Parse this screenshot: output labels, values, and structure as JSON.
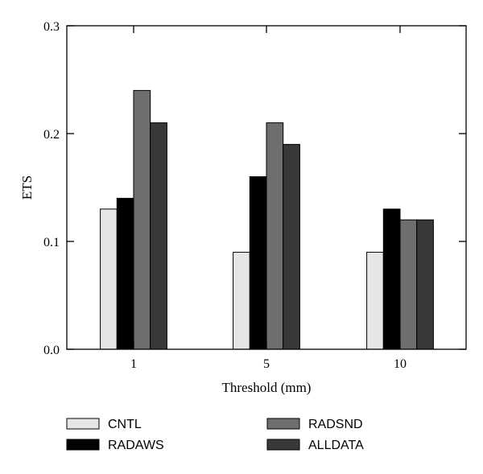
{
  "chart_data": {
    "type": "bar",
    "title": "",
    "xlabel": "Threshold (mm)",
    "ylabel": "ETS",
    "categories": [
      "1",
      "5",
      "10"
    ],
    "ylim": [
      0,
      0.3
    ],
    "yticks": [
      "0.0",
      "0.1",
      "0.2",
      "0.3"
    ],
    "grid": false,
    "legend_position": "bottom",
    "series": [
      {
        "name": "CNTL",
        "color": "#e6e6e6",
        "values": [
          0.13,
          0.09,
          0.09
        ]
      },
      {
        "name": "RADAWS",
        "color": "#000000",
        "values": [
          0.14,
          0.16,
          0.13
        ]
      },
      {
        "name": "RADSND",
        "color": "#6e6e6e",
        "values": [
          0.24,
          0.21,
          0.12
        ]
      },
      {
        "name": "ALLDATA",
        "color": "#383838",
        "values": [
          0.21,
          0.19,
          0.12
        ]
      }
    ]
  }
}
